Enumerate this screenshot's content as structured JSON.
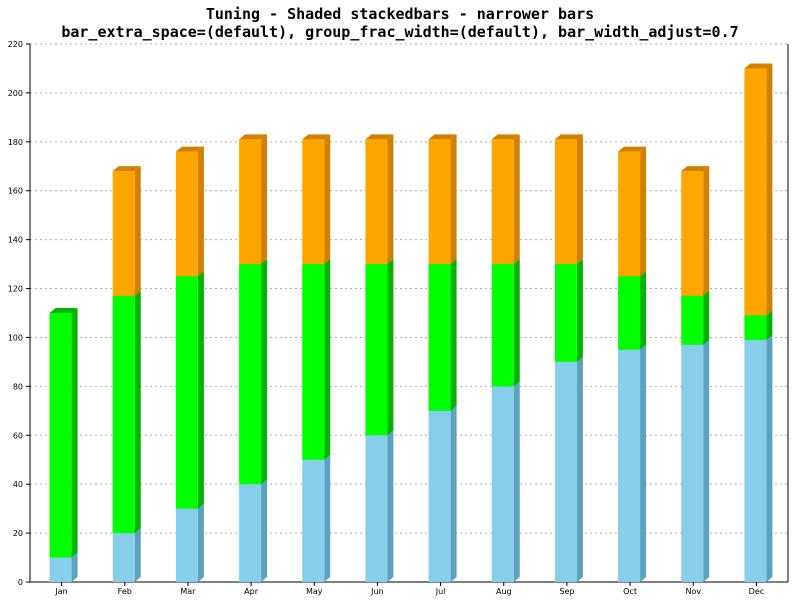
{
  "chart_data": {
    "type": "bar",
    "stacked": true,
    "style": "3d-shaded",
    "title": "Tuning - Shaded stackedbars - narrower bars",
    "subtitle": "bar_extra_space=(default), group_frac_width=(default), bar_width_adjust=0.7",
    "xlabel": "",
    "ylabel": "",
    "ylim": [
      0,
      220
    ],
    "ytick_step": 20,
    "grid": true,
    "categories": [
      "Jan",
      "Feb",
      "Mar",
      "Apr",
      "May",
      "Jun",
      "Jul",
      "Aug",
      "Sep",
      "Oct",
      "Nov",
      "Dec"
    ],
    "series": [
      {
        "values": [
          10,
          20,
          30,
          40,
          50,
          60,
          70,
          80,
          90,
          95,
          97,
          99
        ],
        "color": "#87ceeb",
        "side_color": "#5aa2bd"
      },
      {
        "values": [
          100,
          97,
          95,
          90,
          80,
          70,
          60,
          50,
          40,
          30,
          20,
          10
        ],
        "color": "#00ff00",
        "side_color": "#00b400"
      },
      {
        "values": [
          0,
          51,
          51,
          51,
          51,
          51,
          51,
          51,
          51,
          51,
          51,
          101
        ],
        "color": "#ffa500",
        "side_color": "#d28000"
      }
    ]
  }
}
